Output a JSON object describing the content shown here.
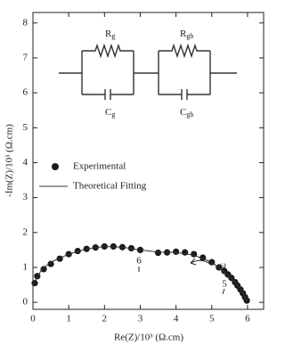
{
  "chart_data": {
    "type": "scatter",
    "xlabel": "Re(Z)/10³ (Ω.cm)",
    "ylabel": "-Im(Z)/10³ (Ω.cm)",
    "xlim": [
      0,
      6.45
    ],
    "ylim": [
      -0.2,
      8.3
    ],
    "xticks": [
      0,
      1,
      2,
      3,
      4,
      5,
      6
    ],
    "yticks": [
      0,
      1,
      2,
      3,
      4,
      5,
      6,
      7,
      8
    ],
    "series": [
      {
        "name": "Experimental",
        "kind": "scatter",
        "color": "#1a1a1a",
        "x": [
          0.05,
          0.12,
          0.3,
          0.5,
          0.75,
          1.0,
          1.25,
          1.5,
          1.75,
          2.0,
          2.25,
          2.5,
          2.75,
          3.0,
          3.5,
          3.75,
          4.0,
          4.25,
          4.5,
          4.75,
          5.0,
          5.2,
          5.35,
          5.45,
          5.55,
          5.65,
          5.72,
          5.8,
          5.87,
          5.93,
          5.98
        ],
        "values": [
          0.55,
          0.75,
          0.95,
          1.1,
          1.25,
          1.38,
          1.47,
          1.53,
          1.57,
          1.6,
          1.6,
          1.58,
          1.55,
          1.5,
          1.42,
          1.43,
          1.45,
          1.43,
          1.38,
          1.28,
          1.15,
          1.0,
          0.9,
          0.8,
          0.7,
          0.58,
          0.48,
          0.37,
          0.26,
          0.15,
          0.05
        ]
      },
      {
        "name": "Theoretical Fitting",
        "kind": "line",
        "color": "#333333",
        "x": [
          0,
          0.25,
          0.5,
          1.0,
          1.5,
          2.0,
          2.5,
          3.0,
          3.5,
          4.0,
          4.5,
          5.0,
          5.5,
          5.8,
          6.0
        ],
        "values": [
          0.5,
          0.95,
          1.15,
          1.38,
          1.53,
          1.6,
          1.58,
          1.5,
          1.44,
          1.43,
          1.35,
          1.15,
          0.75,
          0.4,
          0.02
        ]
      }
    ],
    "annotations": [
      "6",
      "5",
      "ω"
    ],
    "circuit": [
      {
        "label": "R",
        "subscript": "g"
      },
      {
        "label": "C",
        "subscript": "g"
      },
      {
        "label": "R",
        "subscript": "gb"
      },
      {
        "label": "C",
        "subscript": "gb"
      }
    ]
  }
}
